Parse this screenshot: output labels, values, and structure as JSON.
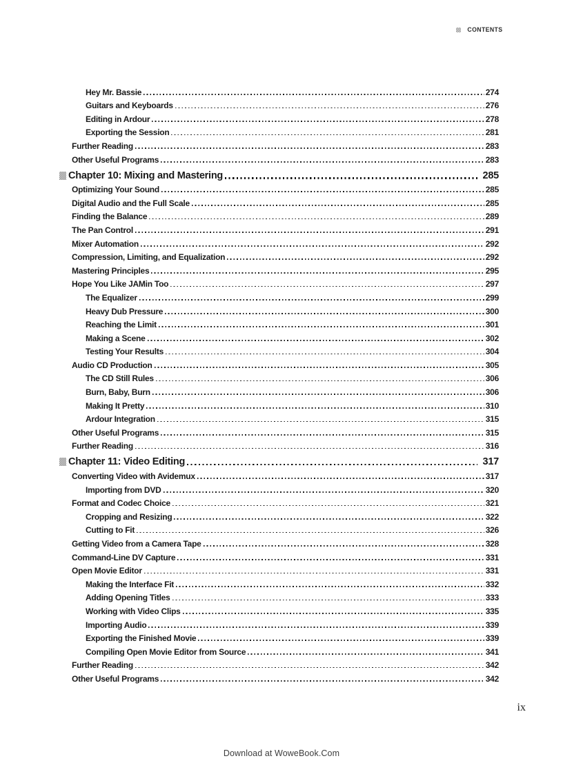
{
  "header": {
    "label": "CONTENTS"
  },
  "footer": {
    "page_number": "ix",
    "watermark": "Download at WoweBook.Com"
  },
  "toc": {
    "entries": [
      {
        "level": 2,
        "title": "Hey Mr. Bassie",
        "page": "274"
      },
      {
        "level": 2,
        "title": "Guitars and Keyboards",
        "page": "276"
      },
      {
        "level": 2,
        "title": "Editing in Ardour",
        "page": "278"
      },
      {
        "level": 2,
        "title": "Exporting the Session",
        "page": "281"
      },
      {
        "level": 1,
        "title": "Further Reading",
        "page": "283"
      },
      {
        "level": 1,
        "title": "Other Useful Programs",
        "page": "283"
      },
      {
        "level": 0,
        "title": "Chapter 10: Mixing and Mastering",
        "page": "285"
      },
      {
        "level": 1,
        "title": "Optimizing Your Sound",
        "page": "285"
      },
      {
        "level": 1,
        "title": "Digital Audio and the Full Scale",
        "page": "285"
      },
      {
        "level": 1,
        "title": "Finding the Balance",
        "page": "289"
      },
      {
        "level": 1,
        "title": "The Pan Control",
        "page": "291"
      },
      {
        "level": 1,
        "title": "Mixer Automation",
        "page": "292"
      },
      {
        "level": 1,
        "title": "Compression, Limiting, and Equalization",
        "page": "292"
      },
      {
        "level": 1,
        "title": "Mastering Principles",
        "page": "295"
      },
      {
        "level": 1,
        "title": "Hope You Like JAMin Too",
        "page": "297"
      },
      {
        "level": 2,
        "title": "The Equalizer",
        "page": "299"
      },
      {
        "level": 2,
        "title": "Heavy Dub Pressure",
        "page": "300"
      },
      {
        "level": 2,
        "title": "Reaching the Limit",
        "page": "301"
      },
      {
        "level": 2,
        "title": "Making a Scene",
        "page": "302"
      },
      {
        "level": 2,
        "title": "Testing Your Results",
        "page": "304"
      },
      {
        "level": 1,
        "title": "Audio CD Production",
        "page": "305"
      },
      {
        "level": 2,
        "title": "The CD Still Rules",
        "page": "306"
      },
      {
        "level": 2,
        "title": "Burn, Baby, Burn",
        "page": "306"
      },
      {
        "level": 2,
        "title": "Making It Pretty",
        "page": "310"
      },
      {
        "level": 2,
        "title": "Ardour Integration",
        "page": "315"
      },
      {
        "level": 1,
        "title": "Other Useful Programs",
        "page": "315"
      },
      {
        "level": 1,
        "title": "Further Reading",
        "page": "316"
      },
      {
        "level": 0,
        "title": "Chapter 11: Video Editing",
        "page": "317"
      },
      {
        "level": 1,
        "title": "Converting Video with Avidemux",
        "page": "317"
      },
      {
        "level": 2,
        "title": "Importing from DVD",
        "page": "320"
      },
      {
        "level": 1,
        "title": "Format and Codec Choice",
        "page": "321"
      },
      {
        "level": 2,
        "title": "Cropping and Resizing",
        "page": "322"
      },
      {
        "level": 2,
        "title": "Cutting to Fit",
        "page": "326"
      },
      {
        "level": 1,
        "title": "Getting Video from a Camera Tape",
        "page": "328"
      },
      {
        "level": 1,
        "title": "Command-Line DV Capture",
        "page": "331"
      },
      {
        "level": 1,
        "title": "Open Movie Editor",
        "page": "331"
      },
      {
        "level": 2,
        "title": "Making the Interface Fit",
        "page": "332"
      },
      {
        "level": 2,
        "title": "Adding Opening Titles",
        "page": "333"
      },
      {
        "level": 2,
        "title": "Working with Video Clips",
        "page": "335"
      },
      {
        "level": 2,
        "title": "Importing Audio",
        "page": "339"
      },
      {
        "level": 2,
        "title": "Exporting the Finished Movie",
        "page": "339"
      },
      {
        "level": 2,
        "title": "Compiling Open Movie Editor from Source",
        "page": "341"
      },
      {
        "level": 1,
        "title": "Further Reading",
        "page": "342"
      },
      {
        "level": 1,
        "title": "Other Useful Programs",
        "page": "342"
      }
    ]
  }
}
